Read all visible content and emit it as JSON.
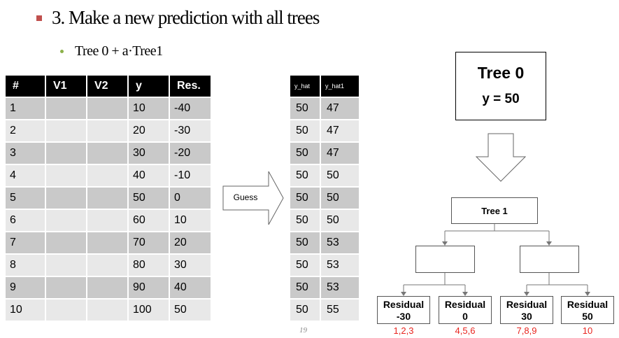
{
  "heading": "3. Make a new prediction with all trees",
  "subheading": "Tree 0 + a·Tree1",
  "table_main": {
    "headers": [
      "#",
      "V1",
      "V2",
      "y",
      "Res."
    ],
    "rows": [
      [
        "1",
        "",
        "",
        "10",
        "-40"
      ],
      [
        "2",
        "",
        "",
        "20",
        "-30"
      ],
      [
        "3",
        "",
        "",
        "30",
        "-20"
      ],
      [
        "4",
        "",
        "",
        "40",
        "-10"
      ],
      [
        "5",
        "",
        "",
        "50",
        "0"
      ],
      [
        "6",
        "",
        "",
        "60",
        "10"
      ],
      [
        "7",
        "",
        "",
        "70",
        "20"
      ],
      [
        "8",
        "",
        "",
        "80",
        "30"
      ],
      [
        "9",
        "",
        "",
        "90",
        "40"
      ],
      [
        "10",
        "",
        "",
        "100",
        "50"
      ]
    ]
  },
  "table_pred": {
    "headers": [
      "y_hat",
      "y_hat1"
    ],
    "rows": [
      [
        "50",
        "47"
      ],
      [
        "50",
        "47"
      ],
      [
        "50",
        "47"
      ],
      [
        "50",
        "50"
      ],
      [
        "50",
        "50"
      ],
      [
        "50",
        "50"
      ],
      [
        "50",
        "53"
      ],
      [
        "50",
        "53"
      ],
      [
        "50",
        "53"
      ],
      [
        "50",
        "55"
      ]
    ]
  },
  "guess_label": "Guess",
  "tree0": {
    "title": "Tree 0",
    "value": "y = 50"
  },
  "tree1": {
    "title": "Tree 1"
  },
  "leaves": [
    {
      "label": "Residual",
      "value": "-30",
      "indices": "1,2,3"
    },
    {
      "label": "Residual",
      "value": "0",
      "indices": "4,5,6"
    },
    {
      "label": "Residual",
      "value": "30",
      "indices": "7,8,9"
    },
    {
      "label": "Residual",
      "value": "50",
      "indices": "10"
    }
  ],
  "page_number": "19",
  "colors": {
    "bullet": "#c0504d",
    "sub_bullet": "#8cb14a",
    "header_bg": "#000000",
    "row_dark": "#c9c9c9",
    "row_light": "#e8e8e8",
    "index_text": "#e8251f"
  }
}
